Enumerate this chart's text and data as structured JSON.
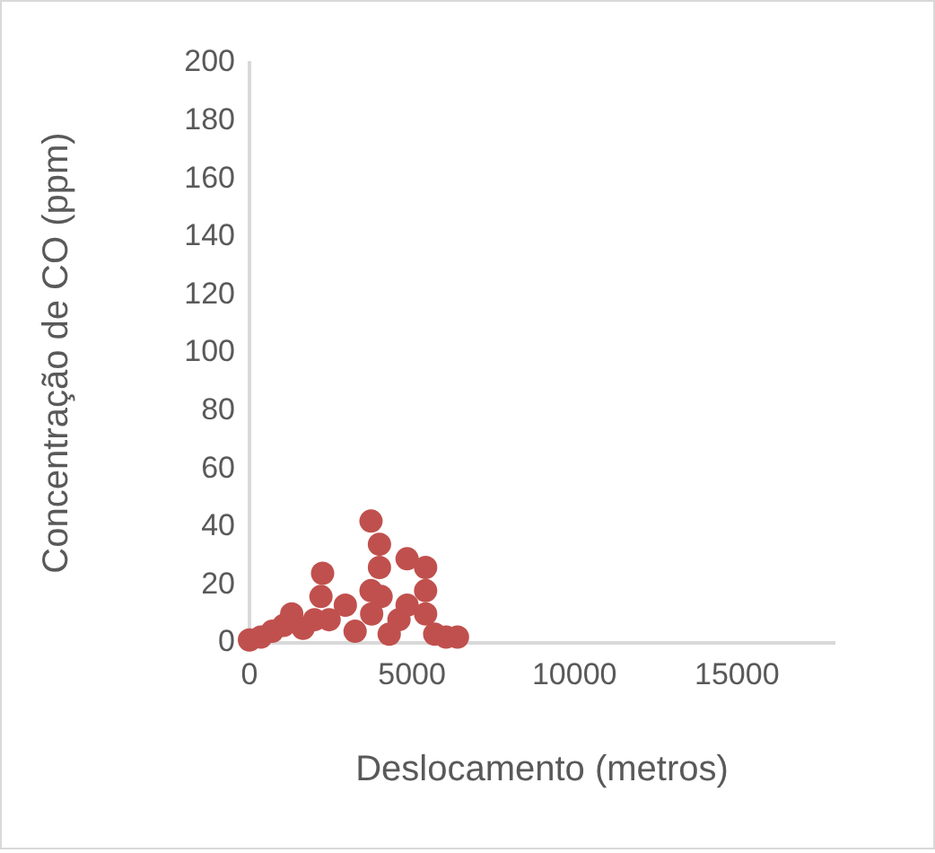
{
  "chart_data": {
    "type": "scatter",
    "xlabel": "Deslocamento (metros)",
    "ylabel": "Concentração de CO (ppm)",
    "xlim": [
      0,
      18000
    ],
    "xticks": [
      0,
      5000,
      10000,
      15000
    ],
    "ylim": [
      0,
      200
    ],
    "yticks": [
      0,
      20,
      40,
      60,
      80,
      100,
      120,
      140,
      160,
      180,
      200
    ],
    "grid": false,
    "legend": false,
    "marker": "circle",
    "series": [
      {
        "color": "#c0504d",
        "x": [
          0,
          350,
          700,
          1050,
          1300,
          1650,
          2000,
          2200,
          2250,
          2450,
          2950,
          3250,
          3740,
          3740,
          3760,
          4000,
          4000,
          4050,
          4300,
          4600,
          4850,
          4850,
          5420,
          5420,
          5420,
          5700,
          6050,
          6400
        ],
        "values": [
          1,
          2,
          4,
          6,
          10,
          5,
          8,
          16,
          24,
          8,
          13,
          4,
          42,
          18,
          10,
          34,
          26,
          16,
          3,
          8,
          29,
          13,
          26,
          18,
          10,
          3,
          2,
          2
        ]
      }
    ]
  }
}
